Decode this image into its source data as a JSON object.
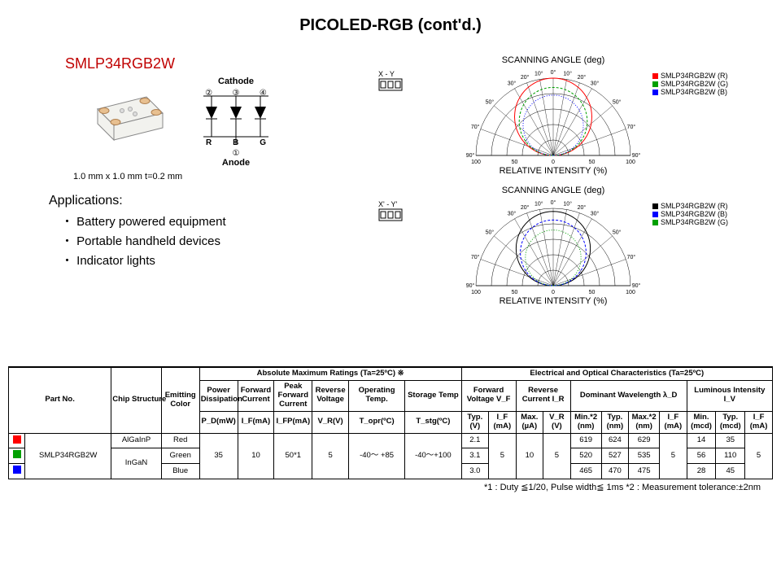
{
  "page_title": "PICOLED-RGB (cont'd.)",
  "part_number": "SMLP34RGB2W",
  "dimensions": "1.0 mm x 1.0 mm t=0.2 mm",
  "schematic": {
    "cathode_label": "Cathode",
    "pins_top": [
      "②",
      "③",
      "④"
    ],
    "elements": [
      "R",
      "B",
      "G"
    ],
    "pin_bottom": "①",
    "anode_label": "Anode"
  },
  "applications": {
    "title": "Applications:",
    "items": [
      "Battery powered equipment",
      "Portable handheld devices",
      "Indicator lights"
    ]
  },
  "polar_charts": [
    {
      "top_title": "SCANNING ANGLE (deg)",
      "bottom_title": "RELATIVE INTENSITY  (%)",
      "xy_label": "X - Y",
      "angle_ticks": [
        "90°",
        "70°",
        "50°",
        "30°",
        "20°",
        "10°",
        "0°",
        "10°",
        "20°",
        "30°",
        "50°",
        "70°",
        "90°"
      ],
      "radial_ticks": [
        "100",
        "50",
        "0",
        "50",
        "100"
      ],
      "legend": [
        {
          "color": "#ff0000",
          "label": "SMLP34RGB2W (R)"
        },
        {
          "color": "#00a000",
          "label": "SMLP34RGB2W (G)"
        },
        {
          "color": "#0000ff",
          "label": "SMLP34RGB2W (B)"
        }
      ],
      "curves": [
        {
          "color": "#ff0000",
          "dash": "",
          "ry_scale": 1.0
        },
        {
          "color": "#00a000",
          "dash": "3,2",
          "ry_scale": 0.88
        },
        {
          "color": "#0000ff",
          "dash": "1,2",
          "ry_scale": 0.78
        }
      ]
    },
    {
      "top_title": "SCANNING ANGLE (deg)",
      "bottom_title": "RELATIVE INTENSITY  (%)",
      "xy_label": "X' - Y'",
      "angle_ticks": [
        "90°",
        "70°",
        "50°",
        "30°",
        "20°",
        "10°",
        "0°",
        "10°",
        "20°",
        "30°",
        "50°",
        "70°",
        "90°"
      ],
      "radial_ticks": [
        "100",
        "50",
        "0",
        "50",
        "100"
      ],
      "legend": [
        {
          "color": "#000000",
          "label": "SMLP34RGB2W (R)"
        },
        {
          "color": "#0000ff",
          "label": "SMLP34RGB2W (B)"
        },
        {
          "color": "#00a000",
          "label": "SMLP34RGB2W (G)"
        }
      ],
      "curves": [
        {
          "color": "#000000",
          "dash": "",
          "ry_scale": 0.96
        },
        {
          "color": "#0000ff",
          "dash": "3,2",
          "ry_scale": 0.85
        },
        {
          "color": "#00a000",
          "dash": "1,2",
          "ry_scale": 0.72
        }
      ]
    }
  ],
  "table": {
    "section_headers": {
      "abs_max": "Absolute Maximum Ratings (Ta=25ºC) ※",
      "elec_opt": "Electrical and Optical Characteristics (Ta=25ºC)"
    },
    "col_groups": [
      {
        "label": "Part No.",
        "span": 1,
        "rows": 3
      },
      {
        "label": "Chip Structure",
        "span": 1,
        "rows": 3
      },
      {
        "label": "Emitting Color",
        "span": 1,
        "rows": 3
      }
    ],
    "abs_cols": [
      {
        "h1": "Power",
        "h2": "Dissipation",
        "h3": "P_D(mW)"
      },
      {
        "h1": "Forward",
        "h2": "Current",
        "h3": "I_F(mA)"
      },
      {
        "h1": "Peak Forward",
        "h2": "Current",
        "h3": "I_FP(mA)"
      },
      {
        "h1": "Reverse",
        "h2": "Voltage",
        "h3": "V_R(V)"
      },
      {
        "h1": "Operating Temp.",
        "h2": "",
        "h3": "T_opr(ºC)"
      },
      {
        "h1": "Storage Temp",
        "h2": "",
        "h3": "T_stg(ºC)"
      }
    ],
    "elec_groups": [
      {
        "label": "Forward Voltage V_F",
        "sub": [
          {
            "l": "Typ.",
            "u": "(V)"
          },
          {
            "l": "I_F",
            "u": "(mA)"
          }
        ]
      },
      {
        "label": "Reverse Current I_R",
        "sub": [
          {
            "l": "Max.",
            "u": "(µA)"
          },
          {
            "l": "V_R",
            "u": "(V)"
          }
        ]
      },
      {
        "label": "Dominant Wavelength λ_D",
        "sub": [
          {
            "l": "Min.*2",
            "u": "(nm)"
          },
          {
            "l": "Typ.",
            "u": "(nm)"
          },
          {
            "l": "Max.*2",
            "u": "(nm)"
          },
          {
            "l": "I_F",
            "u": "(mA)"
          }
        ]
      },
      {
        "label": "Luminous Intensity I_V",
        "sub": [
          {
            "l": "Min.",
            "u": "(mcd)"
          },
          {
            "l": "Typ.",
            "u": "(mcd)"
          },
          {
            "l": "I_F",
            "u": "(mA)"
          }
        ]
      }
    ],
    "part_colors": [
      "#ff0000",
      "#00a000",
      "#0000ff"
    ],
    "rows": [
      {
        "chip": "AlGaInP",
        "color": "Red",
        "vf": "2.1",
        "wl": [
          "619",
          "624",
          "629"
        ],
        "iv": [
          "14",
          "35"
        ]
      },
      {
        "chip": "InGaN",
        "color": "Green",
        "vf": "3.1",
        "wl": [
          "520",
          "527",
          "535"
        ],
        "iv": [
          "56",
          "110"
        ]
      },
      {
        "chip": "",
        "color": "Blue",
        "vf": "3.0",
        "wl": [
          "465",
          "470",
          "475"
        ],
        "iv": [
          "28",
          "45"
        ]
      }
    ],
    "shared": {
      "pd": "35",
      "if": "10",
      "ifp": "50*1",
      "vr": "5",
      "topr": "-40～ +85",
      "tstg": "-40～+100",
      "if_vf": "5",
      "ir_max": "10",
      "ir_vr": "5",
      "if_wl": "5",
      "if_iv": "5"
    },
    "footnote": "*1 : Duty ≦1/20,  Pulse width≦ 1ms *2 : Measurement tolerance:±2nm"
  },
  "chip_render": {
    "body_fill": "#f2f2ee",
    "body_stroke": "#888",
    "pad_fill": "#e8c090",
    "pad_stroke": "#b08050",
    "dot_fill": "#ddd"
  }
}
